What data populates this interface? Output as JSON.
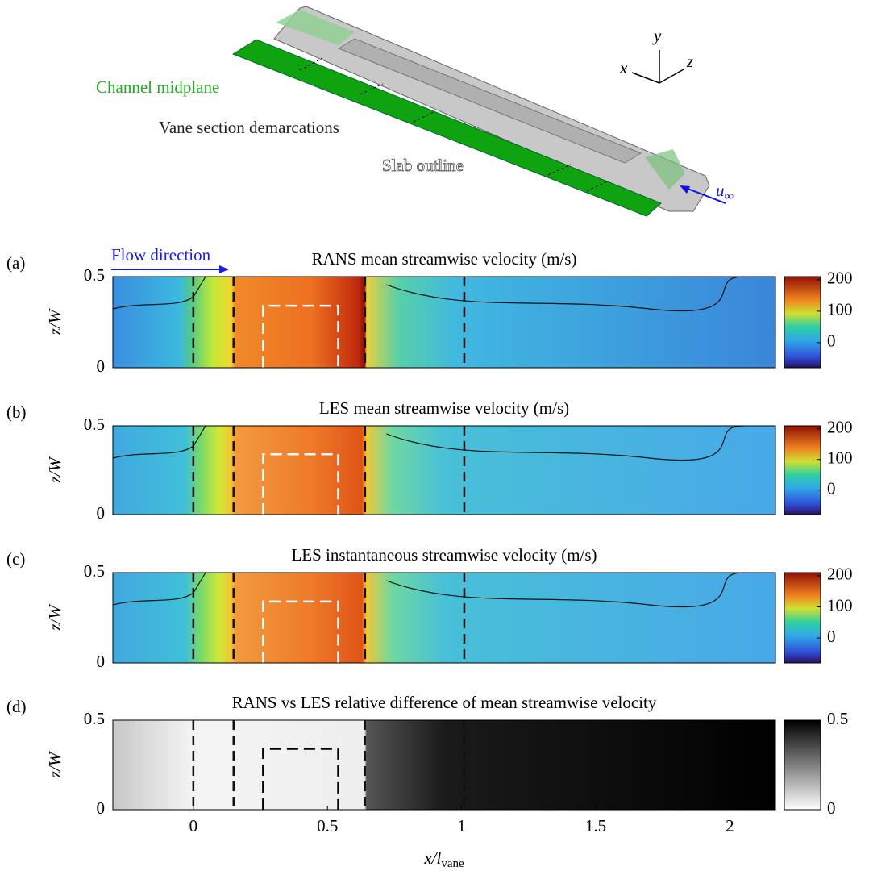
{
  "diagram": {
    "channel_midplane": "Channel midplane",
    "vane_section": "Vane section demarcations",
    "slab": "Slab outline",
    "x": "x",
    "y": "y",
    "z": "z",
    "u": "u",
    "u_sub": "∞"
  },
  "flow_direction": "Flow direction",
  "xlabel": "x/l",
  "xlabel_sub": "vane",
  "ylabel": "z/W",
  "vane_sections": [
    0,
    0.15,
    0.64,
    1.01
  ],
  "slab_x": [
    0.26,
    0.54
  ],
  "slab_top": 0.34,
  "chart_data": [
    {
      "type": "heatmap",
      "panel": "(a)",
      "title": "RANS mean streamwise velocity (m/s)",
      "xlim": [
        -0.3,
        2.17
      ],
      "ylim": [
        0,
        0.5
      ],
      "yticks": [
        0,
        0.5
      ],
      "colormap": "jet",
      "clim": [
        -80,
        210
      ],
      "cticks": [
        0,
        100,
        200
      ],
      "slab_color": "#ffffff"
    },
    {
      "type": "heatmap",
      "panel": "(b)",
      "title": "LES mean streamwise velocity (m/s)",
      "xlim": [
        -0.3,
        2.17
      ],
      "ylim": [
        0,
        0.5
      ],
      "yticks": [
        0,
        0.5
      ],
      "colormap": "jet",
      "clim": [
        -80,
        210
      ],
      "cticks": [
        0,
        100,
        200
      ],
      "slab_color": "#ffffff"
    },
    {
      "type": "heatmap",
      "panel": "(c)",
      "title": "LES instantaneous streamwise velocity (m/s)",
      "xlim": [
        -0.3,
        2.17
      ],
      "ylim": [
        0,
        0.5
      ],
      "yticks": [
        0,
        0.5
      ],
      "colormap": "jet",
      "clim": [
        -80,
        210
      ],
      "cticks": [
        0,
        100,
        200
      ],
      "slab_color": "#ffffff"
    },
    {
      "type": "heatmap",
      "panel": "(d)",
      "title": "RANS vs LES relative difference of mean streamwise velocity",
      "xlim": [
        -0.3,
        2.17
      ],
      "ylim": [
        0,
        0.5
      ],
      "yticks": [
        0,
        0.5
      ],
      "xticks": [
        0,
        0.5,
        1,
        1.5,
        2
      ],
      "colormap": "gray",
      "clim": [
        0,
        0.5
      ],
      "cticks": [
        0,
        0.5
      ],
      "slab_color": "#000000"
    }
  ]
}
